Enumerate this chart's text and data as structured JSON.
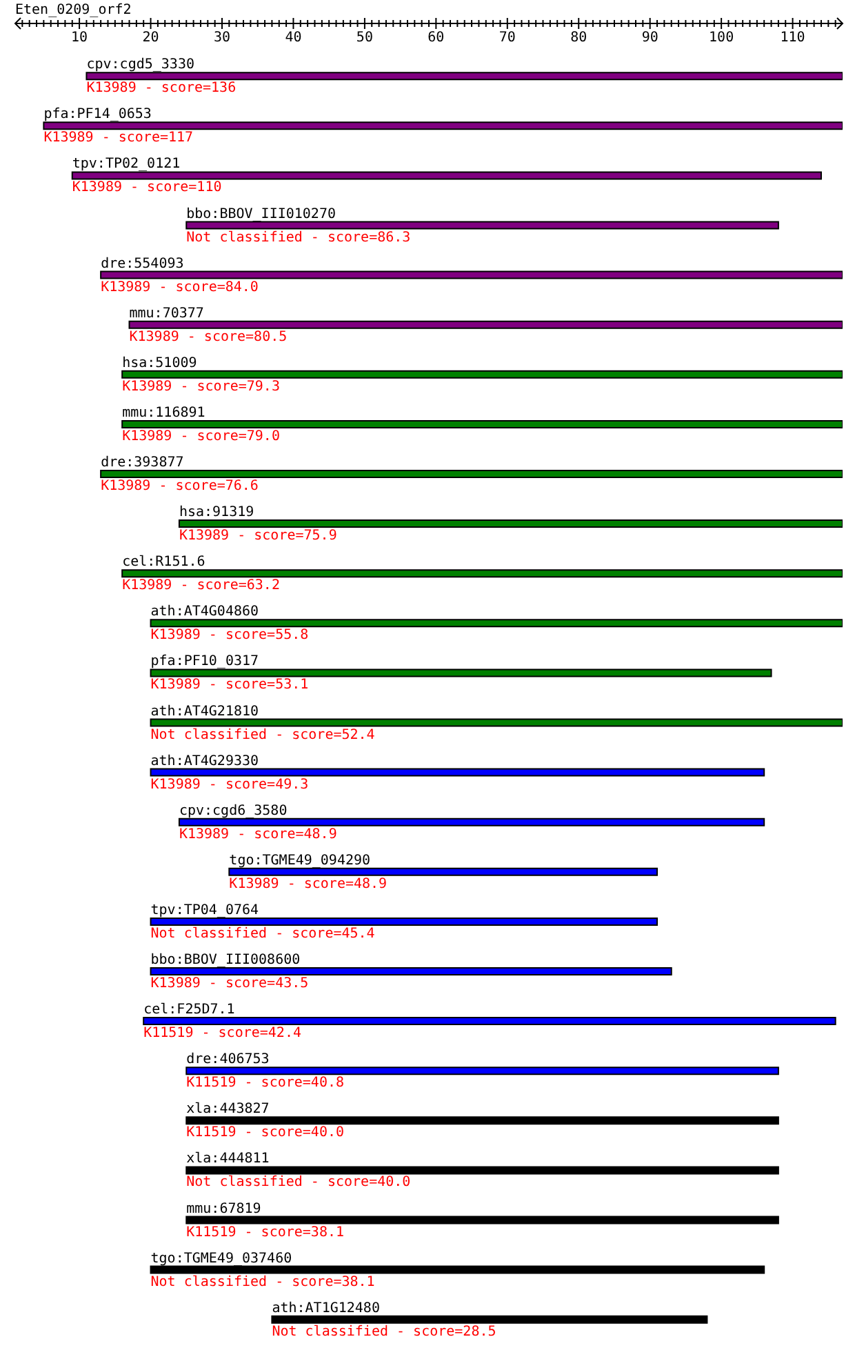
{
  "chart_data": {
    "type": "bar",
    "orientation": "horizontal",
    "title": "Eten_0209_orf2",
    "categories": [
      "cpv:cgd5_3330",
      "pfa:PF14_0653",
      "tpv:TP02_0121",
      "bbo:BBOV_III010270",
      "dre:554093",
      "mmu:70377",
      "hsa:51009",
      "mmu:116891",
      "dre:393877",
      "hsa:91319",
      "cel:R151.6",
      "ath:AT4G04860",
      "pfa:PF10_0317",
      "ath:AT4G21810",
      "ath:AT4G29330",
      "cpv:cgd6_3580",
      "tgo:TGME49_094290",
      "tpv:TP04_0764",
      "bbo:BBOV_III008600",
      "cel:F25D7.1",
      "dre:406753",
      "xla:443827",
      "xla:444811",
      "mmu:67819",
      "tgo:TGME49_037460",
      "ath:AT1G12480"
    ],
    "base": [
      11,
      5,
      9,
      25,
      13,
      17,
      16,
      16,
      13,
      24,
      16,
      20,
      20,
      20,
      20,
      24,
      31,
      20,
      20,
      19,
      25,
      25,
      25,
      25,
      20,
      37
    ],
    "values": [
      106,
      112,
      105,
      83,
      104,
      100,
      101,
      101,
      104,
      93,
      101,
      97,
      87,
      97,
      86,
      82,
      60,
      71,
      73,
      97,
      83,
      83,
      83,
      83,
      86,
      61
    ],
    "colors": [
      "#800080",
      "#800080",
      "#800080",
      "#800080",
      "#800080",
      "#800080",
      "#008000",
      "#008000",
      "#008000",
      "#008000",
      "#008000",
      "#008000",
      "#008000",
      "#008000",
      "#0000ff",
      "#0000ff",
      "#0000ff",
      "#0000ff",
      "#0000ff",
      "#0000ff",
      "#0000ff",
      "#000000",
      "#000000",
      "#000000",
      "#000000",
      "#000000"
    ],
    "xlim": [
      1,
      117
    ],
    "xticks": [
      {
        "value": 2,
        "label": null
      },
      {
        "value": 3,
        "label": null
      },
      {
        "value": 4,
        "label": null
      },
      {
        "value": 5,
        "label": null
      },
      {
        "value": 6,
        "label": null
      },
      {
        "value": 7,
        "label": null
      },
      {
        "value": 8,
        "label": null
      },
      {
        "value": 9,
        "label": null
      },
      10,
      {
        "value": 11,
        "label": null
      },
      {
        "value": 12,
        "label": null
      },
      {
        "value": 13,
        "label": null
      },
      {
        "value": 14,
        "label": null
      },
      {
        "value": 15,
        "label": null
      },
      {
        "value": 16,
        "label": null
      },
      {
        "value": 17,
        "label": null
      },
      {
        "value": 18,
        "label": null
      },
      {
        "value": 19,
        "label": null
      },
      20,
      {
        "value": 21,
        "label": null
      },
      {
        "value": 22,
        "label": null
      },
      {
        "value": 23,
        "label": null
      },
      {
        "value": 24,
        "label": null
      },
      {
        "value": 25,
        "label": null
      },
      {
        "value": 26,
        "label": null
      },
      {
        "value": 27,
        "label": null
      },
      {
        "value": 28,
        "label": null
      },
      {
        "value": 29,
        "label": null
      },
      30,
      {
        "value": 31,
        "label": null
      },
      {
        "value": 32,
        "label": null
      },
      {
        "value": 33,
        "label": null
      },
      {
        "value": 34,
        "label": null
      },
      {
        "value": 35,
        "label": null
      },
      {
        "value": 36,
        "label": null
      },
      {
        "value": 37,
        "label": null
      },
      {
        "value": 38,
        "label": null
      },
      {
        "value": 39,
        "label": null
      },
      40,
      {
        "value": 41,
        "label": null
      },
      {
        "value": 42,
        "label": null
      },
      {
        "value": 43,
        "label": null
      },
      {
        "value": 44,
        "label": null
      },
      {
        "value": 45,
        "label": null
      },
      {
        "value": 46,
        "label": null
      },
      {
        "value": 47,
        "label": null
      },
      {
        "value": 48,
        "label": null
      },
      {
        "value": 49,
        "label": null
      },
      50,
      {
        "value": 51,
        "label": null
      },
      {
        "value": 52,
        "label": null
      },
      {
        "value": 53,
        "label": null
      },
      {
        "value": 54,
        "label": null
      },
      {
        "value": 55,
        "label": null
      },
      {
        "value": 56,
        "label": null
      },
      {
        "value": 57,
        "label": null
      },
      {
        "value": 58,
        "label": null
      },
      {
        "value": 59,
        "label": null
      },
      60,
      {
        "value": 61,
        "label": null
      },
      {
        "value": 62,
        "label": null
      },
      {
        "value": 63,
        "label": null
      },
      {
        "value": 64,
        "label": null
      },
      {
        "value": 65,
        "label": null
      },
      {
        "value": 66,
        "label": null
      },
      {
        "value": 67,
        "label": null
      },
      {
        "value": 68,
        "label": null
      },
      {
        "value": 69,
        "label": null
      },
      70,
      {
        "value": 71,
        "label": null
      },
      {
        "value": 72,
        "label": null
      },
      {
        "value": 73,
        "label": null
      },
      {
        "value": 74,
        "label": null
      },
      {
        "value": 75,
        "label": null
      },
      {
        "value": 76,
        "label": null
      },
      {
        "value": 77,
        "label": null
      },
      {
        "value": 78,
        "label": null
      },
      {
        "value": 79,
        "label": null
      },
      80,
      {
        "value": 81,
        "label": null
      },
      {
        "value": 82,
        "label": null
      },
      {
        "value": 83,
        "label": null
      },
      {
        "value": 84,
        "label": null
      },
      {
        "value": 85,
        "label": null
      },
      {
        "value": 86,
        "label": null
      },
      {
        "value": 87,
        "label": null
      },
      {
        "value": 88,
        "label": null
      },
      {
        "value": 89,
        "label": null
      },
      90,
      {
        "value": 91,
        "label": null
      },
      {
        "value": 92,
        "label": null
      },
      {
        "value": 93,
        "label": null
      },
      {
        "value": 94,
        "label": null
      },
      {
        "value": 95,
        "label": null
      },
      {
        "value": 96,
        "label": null
      },
      {
        "value": 97,
        "label": null
      },
      {
        "value": 98,
        "label": null
      },
      {
        "value": 99,
        "label": null
      },
      100,
      {
        "value": 101,
        "label": null
      },
      {
        "value": 102,
        "label": null
      },
      {
        "value": 103,
        "label": null
      },
      {
        "value": 104,
        "label": null
      },
      {
        "value": 105,
        "label": null
      },
      {
        "value": 106,
        "label": null
      },
      {
        "value": 107,
        "label": null
      },
      {
        "value": 108,
        "label": null
      },
      {
        "value": 109,
        "label": null
      },
      110,
      {
        "value": 111,
        "label": null
      },
      {
        "value": 112,
        "label": null
      },
      {
        "value": 113,
        "label": null
      },
      {
        "value": 114,
        "label": null
      },
      {
        "value": 115,
        "label": null
      },
      {
        "value": 116,
        "label": null
      }
    ],
    "annotations": [
      "K13989 - score=136",
      "K13989 - score=117",
      "K13989 - score=110",
      "Not classified - score=86.3",
      "K13989 - score=84.0",
      "K13989 - score=80.5",
      "K13989 - score=79.3",
      "K13989 - score=79.0",
      "K13989 - score=76.6",
      "K13989 - score=75.9",
      "K13989 - score=63.2",
      "K13989 - score=55.8",
      "K13989 - score=53.1",
      "Not classified - score=52.4",
      "K13989 - score=49.3",
      "K13989 - score=48.9",
      "K13989 - score=48.9",
      "Not classified - score=45.4",
      "K13989 - score=43.5",
      "K11519 - score=42.4",
      "K11519 - score=40.8",
      "K11519 - score=40.0",
      "Not classified - score=40.0",
      "K11519 - score=38.1",
      "Not classified - score=38.1",
      "Not classified - score=28.5"
    ]
  }
}
